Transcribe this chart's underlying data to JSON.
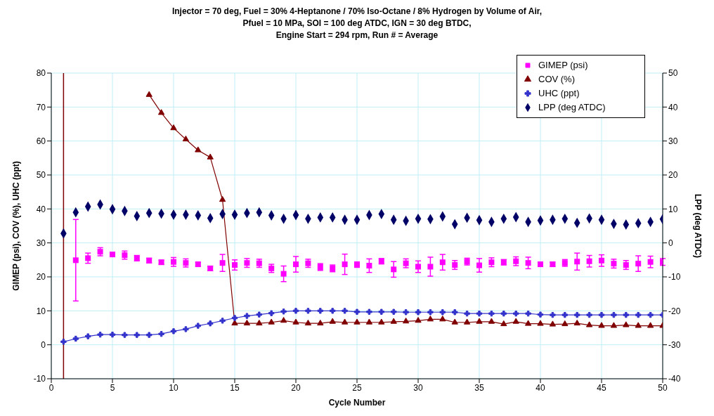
{
  "chart_data": {
    "type": "line",
    "title": "Injector = 70 deg, Fuel = 30%  4-Heptanone / 70%  Iso-Octane / 8%  Hydrogen by Volume of Air,\nPfuel = 10 MPa, SOI = 100 deg ATDC, IGN = 30 deg BTDC,\nEngine Start = 294 rpm, Run # = Average",
    "xlabel": "Cycle Number",
    "ylabel": "GIMEP (psi), COV (%), UHC (ppt)",
    "y2label": "LPP (deg ATDC)",
    "x": [
      1,
      2,
      3,
      4,
      5,
      6,
      7,
      8,
      9,
      10,
      11,
      12,
      13,
      14,
      15,
      16,
      17,
      18,
      19,
      20,
      21,
      22,
      23,
      24,
      25,
      26,
      27,
      28,
      29,
      30,
      31,
      32,
      33,
      34,
      35,
      36,
      37,
      38,
      39,
      40,
      41,
      42,
      43,
      44,
      45,
      46,
      47,
      48,
      49,
      50
    ],
    "series": [
      {
        "name": "GIMEP (psi)",
        "type": "scatter",
        "marker": "square",
        "color": "#ff00ff",
        "values": [
          null,
          24.9,
          25.5,
          27.4,
          26.6,
          26.4,
          25.5,
          24.8,
          24.3,
          24.4,
          24.1,
          23.7,
          22.5,
          24.1,
          23.5,
          24.1,
          24.0,
          22.5,
          20.9,
          23.7,
          24.0,
          22.9,
          22.5,
          23.7,
          23.6,
          23.3,
          24.6,
          22.2,
          24.0,
          23.0,
          23.0,
          24.3,
          23.5,
          24.5,
          23.4,
          24.3,
          24.3,
          24.6,
          24.1,
          23.7,
          23.7,
          24.1,
          24.5,
          24.6,
          24.8,
          23.9,
          23.5,
          23.9,
          24.4,
          24.4
        ],
        "errors": [
          null,
          12,
          1.5,
          1.2,
          0.5,
          1.2,
          0.8,
          0.7,
          0.6,
          1.3,
          1.2,
          0.6,
          0.6,
          2.5,
          1.5,
          1.3,
          1.2,
          1.2,
          2.3,
          2.3,
          1.2,
          1,
          1,
          3,
          0.8,
          2,
          0.8,
          2.3,
          1.3,
          1.7,
          2.8,
          2.3,
          1.3,
          1,
          2,
          1.3,
          0.8,
          1.3,
          1.7,
          0.6,
          0.6,
          1,
          2.5,
          1.7,
          1.7,
          1.3,
          1.3,
          2.3,
          1.7,
          1
        ]
      },
      {
        "name": "COV (%)",
        "type": "line",
        "marker": "triangle",
        "color": "#800000",
        "values": [
          null,
          null,
          null,
          null,
          null,
          null,
          null,
          73.6,
          68.3,
          63.8,
          60.5,
          57.3,
          55.2,
          42.7,
          6.3,
          6.3,
          6.3,
          6.6,
          7.1,
          6.6,
          6.3,
          6.3,
          6.8,
          6.6,
          6.6,
          6.6,
          6.6,
          6.8,
          6.9,
          7.1,
          7.5,
          7.5,
          6.6,
          6.6,
          6.8,
          6.8,
          6.1,
          6.8,
          6.2,
          6.2,
          6.0,
          6.1,
          6.3,
          5.8,
          5.6,
          5.6,
          5.8,
          5.6,
          5.6,
          5.6
        ]
      },
      {
        "name": "UHC (ppt)",
        "type": "line",
        "marker": "cross",
        "color": "#3333cc",
        "values": [
          0.9,
          1.8,
          2.5,
          3.0,
          3.0,
          2.9,
          2.9,
          2.9,
          3.2,
          4.0,
          4.6,
          5.6,
          6.3,
          7.1,
          7.9,
          8.5,
          8.9,
          9.3,
          9.8,
          10.0,
          10.0,
          10.0,
          10.0,
          10.0,
          9.7,
          9.7,
          9.7,
          9.7,
          9.6,
          9.6,
          9.6,
          9.6,
          9.6,
          9.2,
          9.2,
          9.2,
          9.2,
          9.2,
          9.2,
          8.9,
          8.8,
          8.8,
          8.8,
          8.8,
          8.8,
          8.8,
          8.8,
          8.8,
          8.8,
          8.8
        ]
      },
      {
        "name": "LPP (deg ATDC)",
        "type": "scatter",
        "marker": "diamond",
        "axis": "y2",
        "color": "#000066",
        "values": [
          2.8,
          9.0,
          10.7,
          11.3,
          9.9,
          9.4,
          7.9,
          8.8,
          8.6,
          8.3,
          8.3,
          8.1,
          7.3,
          8.5,
          8.3,
          8.8,
          9.0,
          8.1,
          7.1,
          8.2,
          7.1,
          7.5,
          7.5,
          6.8,
          6.8,
          8.2,
          8.5,
          6.8,
          6.5,
          7.1,
          7.0,
          7.8,
          5.5,
          7.4,
          6.7,
          6.2,
          7.1,
          7.6,
          6.2,
          6.6,
          6.8,
          7.1,
          5.9,
          7.2,
          6.8,
          5.6,
          5.4,
          5.8,
          6.2,
          7.0
        ]
      }
    ],
    "ref_lines": [
      {
        "axis": "x",
        "value": 1,
        "color": "#800000"
      }
    ],
    "xlim": [
      0,
      50
    ],
    "xticks": [
      0,
      5,
      10,
      15,
      20,
      25,
      30,
      35,
      40,
      45,
      50
    ],
    "ylim": [
      -10,
      80
    ],
    "yticks": [
      -10,
      0,
      10,
      20,
      30,
      40,
      50,
      60,
      70,
      80
    ],
    "y2lim": [
      -40,
      50
    ],
    "y2ticks": [
      -40,
      -30,
      -20,
      -10,
      0,
      10,
      20,
      30,
      40,
      50
    ],
    "grid": true,
    "legend": "top right"
  }
}
